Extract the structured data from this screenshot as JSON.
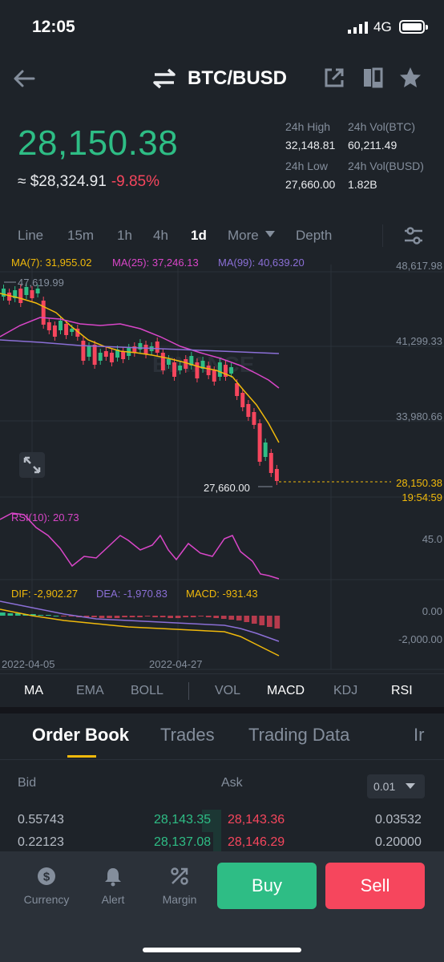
{
  "status": {
    "time": "12:05",
    "network": "4G"
  },
  "header": {
    "pair": "BTC/BUSD",
    "icons": [
      "back-arrow-icon",
      "swap-icon",
      "share-icon",
      "layout-icon",
      "star-icon"
    ]
  },
  "ticker": {
    "last_price": "28,150.38",
    "approx_usd": "≈ $28,324.91",
    "change": "-9.85%",
    "high_label": "24h High",
    "high": "32,148.81",
    "low_label": "24h Low",
    "low": "27,660.00",
    "vol_btc_label": "24h Vol(BTC)",
    "vol_btc": "60,211.49",
    "vol_busd_label": "24h Vol(BUSD)",
    "vol_busd": "1.82B"
  },
  "timeframes": {
    "items": [
      "Line",
      "15m",
      "1h",
      "4h",
      "1d",
      "More",
      "Depth"
    ],
    "active": "1d"
  },
  "chart": {
    "ma7_label": "MA(7): 31,955.02",
    "ma25_label": "MA(25): 37,246.13",
    "ma99_label": "MA(99): 40,639.20",
    "price_axis": [
      "48,617.98",
      "41,299.33",
      "33,980.66"
    ],
    "high_mark": "47,619.99",
    "low_mark": "27,660.00",
    "current_price_tag": "28,150.38",
    "countdown": "19:54:59",
    "watermark": "BINANCE",
    "rsi_label": "RSI(10): 20.73",
    "rsi_axis": "45.0",
    "dif_label": "DIF: -2,902.27",
    "dea_label": "DEA: -1,970.83",
    "macd_label": "MACD: -931.43",
    "macd_axis": [
      "0.00",
      "-2,000.00"
    ],
    "dates": [
      "2022-04-05",
      "2022-04-27"
    ]
  },
  "indicators": {
    "items": [
      "MA",
      "EMA",
      "BOLL",
      "VOL",
      "MACD",
      "KDJ",
      "RSI"
    ],
    "active": [
      "MA",
      "MACD",
      "RSI"
    ]
  },
  "orderbook": {
    "tabs": [
      "Order Book",
      "Trades",
      "Trading Data",
      "Ir"
    ],
    "active_tab": "Order Book",
    "bid_label": "Bid",
    "ask_label": "Ask",
    "precision": "0.01",
    "rows": [
      {
        "bid_qty": "0.55743",
        "bid_price": "28,143.35",
        "ask_price": "28,143.36",
        "ask_qty": "0.03532"
      },
      {
        "bid_qty": "0.22123",
        "bid_price": "28,137.08",
        "ask_price": "28,146.29",
        "ask_qty": "0.20000"
      }
    ]
  },
  "bottom_nav": {
    "currency": "Currency",
    "alert": "Alert",
    "margin": "Margin",
    "buy": "Buy",
    "sell": "Sell"
  },
  "colors": {
    "up": "#2ebd85",
    "down": "#f6465d",
    "accent": "#f0b90b",
    "ma7": "#f0b90b",
    "ma25": "#d946c8",
    "ma99": "#8b6fd6"
  }
}
